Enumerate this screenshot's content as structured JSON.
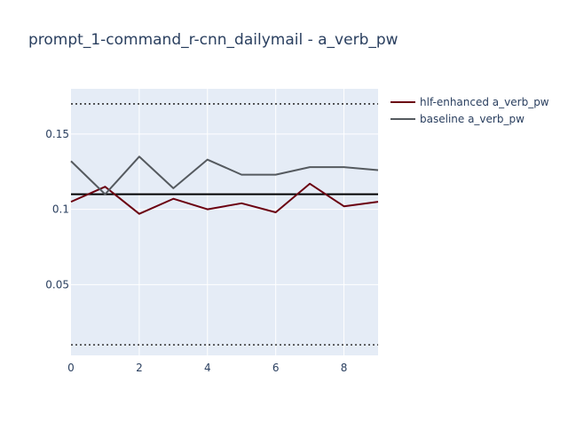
{
  "chart_data": {
    "type": "line",
    "title": "prompt_1-command_r-cnn_dailymail - a_verb_pw",
    "xlabel": "",
    "ylabel": "",
    "xlim": [
      0,
      9
    ],
    "ylim": [
      0.003,
      0.18
    ],
    "x_ticks": [
      0,
      2,
      4,
      6,
      8
    ],
    "x_tick_labels": [
      "0",
      "2",
      "4",
      "6",
      "8"
    ],
    "y_ticks": [
      0.05,
      0.1,
      0.15
    ],
    "y_tick_labels": [
      "0.05",
      "0.1",
      "0.15"
    ],
    "grid": true,
    "legend_position": "top-right",
    "x": [
      0,
      1,
      2,
      3,
      4,
      5,
      6,
      7,
      8,
      9
    ],
    "series": [
      {
        "name": "hlf-enhanced a_verb_pw",
        "color": "#6b0010",
        "values": [
          0.105,
          0.115,
          0.097,
          0.107,
          0.1,
          0.104,
          0.098,
          0.117,
          0.102,
          0.105
        ]
      },
      {
        "name": "baseline a_verb_pw",
        "color": "#555a5f",
        "values": [
          0.132,
          0.11,
          0.135,
          0.114,
          0.133,
          0.123,
          0.123,
          0.128,
          0.128,
          0.126
        ]
      }
    ],
    "reference_lines": [
      {
        "y": 0.11,
        "style": "solid",
        "color": "#000000"
      },
      {
        "y": 0.17,
        "style": "dotted",
        "color": "#333333"
      },
      {
        "y": 0.01,
        "style": "dotted",
        "color": "#333333"
      }
    ],
    "colors": {
      "plot_bg": "#e5ecf6",
      "grid": "#ffffff",
      "text": "#2a3f5f"
    }
  }
}
